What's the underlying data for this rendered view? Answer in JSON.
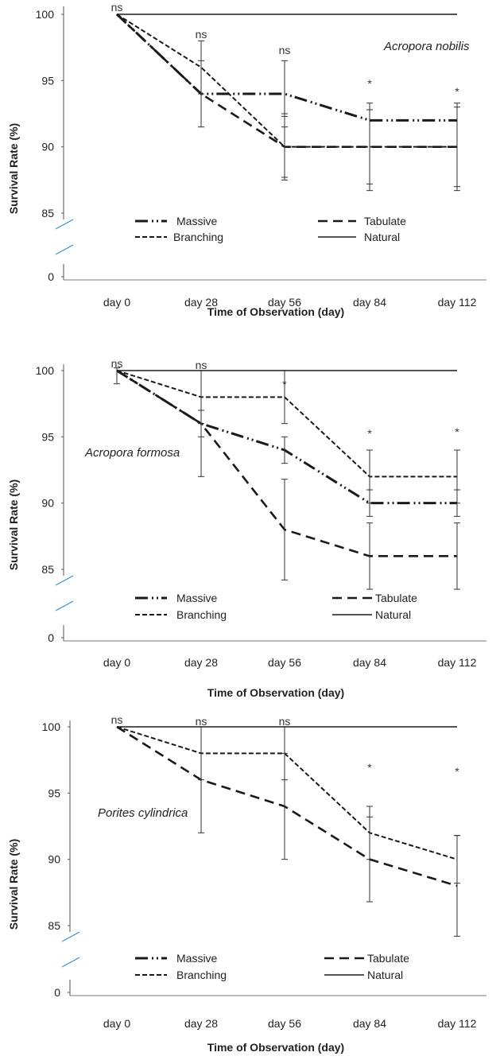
{
  "chart_data": [
    {
      "type": "line",
      "annotation": "Acropora nobilis",
      "xlabel": "Time of Observation (day)",
      "ylabel": "Survival Rate (%)",
      "categories": [
        "day 0",
        "day 28",
        "day 56",
        "day 84",
        "day 112"
      ],
      "y_ticks": [
        "0",
        "85",
        "90",
        "95",
        "100"
      ],
      "axis_break": true,
      "series": [
        {
          "name": "Massive",
          "values": [
            100,
            94,
            94,
            92,
            92
          ],
          "error": [
            null,
            null,
            2.5,
            null,
            null
          ]
        },
        {
          "name": "Tabulate",
          "values": [
            100,
            94,
            90,
            90,
            90
          ],
          "error": [
            null,
            2.5,
            2.5,
            3.3,
            3.3
          ]
        },
        {
          "name": "Branching",
          "values": [
            100,
            96,
            90,
            90,
            90
          ],
          "error": [
            null,
            2,
            2.3,
            2.8,
            3
          ]
        },
        {
          "name": "Natural",
          "values": [
            100,
            100,
            100,
            100,
            100
          ],
          "error": [
            null,
            null,
            null,
            null,
            null
          ]
        }
      ],
      "significance": [
        "ns",
        "ns",
        "ns",
        "*",
        "*"
      ],
      "legend": [
        "Massive",
        "Tabulate",
        "Branching",
        "Natural"
      ]
    },
    {
      "type": "line",
      "annotation": "Acropora formosa",
      "xlabel": "Time of Observation (day)",
      "ylabel": "Survival Rate (%)",
      "categories": [
        "day 0",
        "day 28",
        "day 56",
        "day 84",
        "day 112"
      ],
      "y_ticks": [
        "0",
        "85",
        "90",
        "95",
        "100"
      ],
      "axis_break": true,
      "series": [
        {
          "name": "Massive",
          "values": [
            100,
            96,
            94,
            90,
            90
          ],
          "error": [
            null,
            1,
            1,
            1,
            1
          ]
        },
        {
          "name": "Tabulate",
          "values": [
            100,
            96,
            88,
            86,
            86
          ],
          "error": [
            1,
            4,
            3.8,
            2.5,
            2.5
          ]
        },
        {
          "name": "Branching",
          "values": [
            100,
            98,
            98,
            92,
            92
          ],
          "error": [
            null,
            2,
            2,
            2,
            2
          ]
        },
        {
          "name": "Natural",
          "values": [
            100,
            100,
            100,
            100,
            100
          ],
          "error": [
            null,
            null,
            null,
            null,
            null
          ]
        }
      ],
      "significance": [
        "ns",
        "ns",
        "*",
        "*",
        "*"
      ],
      "legend": [
        "Massive",
        "Tabulate",
        "Branching",
        "Natural"
      ]
    },
    {
      "type": "line",
      "annotation": "Porites cylindrica",
      "xlabel": "Time of Observation (day)",
      "ylabel": "Survival Rate (%)",
      "categories": [
        "day 0",
        "day 28",
        "day 56",
        "day 84",
        "day 112"
      ],
      "y_ticks": [
        "0",
        "85",
        "90",
        "95",
        "100"
      ],
      "axis_break": true,
      "series": [
        {
          "name": "Massive",
          "values": [
            null,
            null,
            null,
            null,
            null
          ],
          "error": [
            null,
            null,
            null,
            null,
            null
          ]
        },
        {
          "name": "Tabulate",
          "values": [
            100,
            96,
            94,
            90,
            88
          ],
          "error": [
            null,
            4,
            4,
            3.2,
            3.8
          ]
        },
        {
          "name": "Branching",
          "values": [
            100,
            98,
            98,
            92,
            90
          ],
          "error": [
            null,
            2,
            2,
            2,
            1.8
          ]
        },
        {
          "name": "Natural",
          "values": [
            100,
            100,
            100,
            100,
            100
          ],
          "error": [
            null,
            null,
            null,
            null,
            null
          ]
        }
      ],
      "significance": [
        "ns",
        "ns",
        "ns",
        "*",
        "*"
      ],
      "legend": [
        "Massive",
        "Tabulate",
        "Branching",
        "Natural"
      ]
    }
  ]
}
